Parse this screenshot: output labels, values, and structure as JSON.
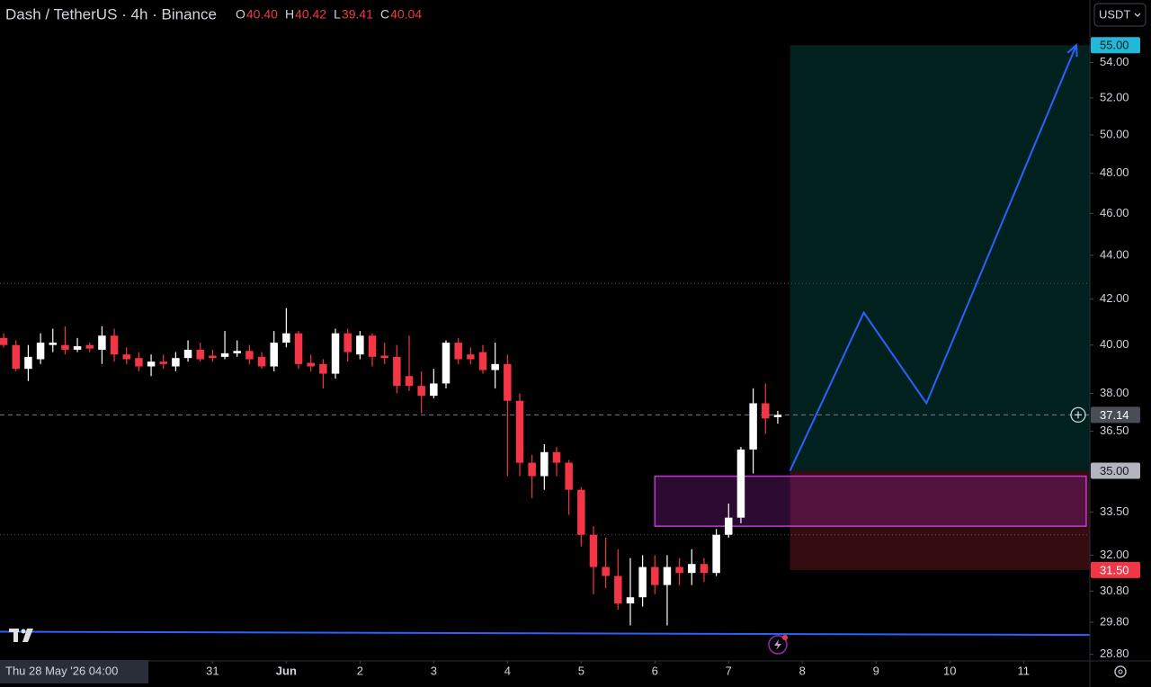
{
  "chart_data": {
    "type": "candlestick",
    "title": "Dash / TetherUS · 4h · Binance",
    "ohlc_legend": [
      {
        "key": "O",
        "text": "40.40"
      },
      {
        "key": "H",
        "text": "40.42"
      },
      {
        "key": "L",
        "text": "39.41"
      },
      {
        "key": "C",
        "text": "40.04"
      }
    ],
    "currency_button": "USDT",
    "crosshair_time": "Thu 28 May '26 04:00",
    "log_scale": true,
    "grid": false,
    "up_color": "#ffffff",
    "down_color": "#f23645",
    "x": [
      0,
      1,
      2,
      3,
      4,
      5,
      6,
      7,
      8,
      9,
      10,
      11,
      12,
      13,
      14,
      15,
      16,
      17,
      18,
      19,
      20,
      21,
      22,
      23,
      24,
      25,
      26,
      27,
      28,
      29,
      30,
      31,
      32,
      33,
      34,
      35,
      36,
      37,
      38,
      39,
      40,
      41,
      42,
      43,
      44,
      45,
      46,
      47,
      48,
      49,
      50,
      51,
      52,
      53,
      54,
      55,
      56,
      57,
      58,
      59,
      60,
      61,
      62,
      63
    ],
    "open": [
      40.3,
      40.0,
      39.0,
      39.4,
      40.0,
      40.0,
      39.8,
      40.0,
      39.8,
      40.4,
      39.6,
      39.45,
      39.1,
      39.3,
      39.1,
      39.45,
      39.8,
      39.55,
      39.5,
      39.65,
      39.75,
      39.5,
      39.1,
      40.1,
      40.5,
      39.25,
      39.2,
      38.8,
      40.5,
      39.6,
      40.4,
      39.55,
      39.5,
      38.7,
      38.3,
      37.9,
      38.4,
      40.1,
      39.6,
      39.7,
      38.95,
      39.2,
      37.7,
      35.3,
      34.8,
      35.7,
      35.3,
      34.3,
      32.7,
      31.6,
      31.3,
      30.4,
      30.6,
      31.6,
      31.0,
      31.6,
      31.4,
      31.7,
      31.4,
      32.7,
      33.3,
      35.8,
      37.6,
      37.05
    ],
    "high": [
      40.5,
      40.2,
      40.0,
      40.5,
      40.7,
      40.8,
      40.3,
      40.1,
      40.8,
      40.7,
      39.9,
      39.7,
      39.6,
      39.6,
      39.7,
      40.2,
      40.1,
      39.8,
      40.6,
      40.2,
      40.0,
      39.7,
      40.6,
      41.6,
      40.6,
      39.6,
      39.4,
      40.7,
      40.7,
      40.6,
      40.5,
      40.1,
      40.0,
      40.4,
      38.9,
      39.0,
      40.2,
      40.3,
      39.9,
      40.0,
      40.1,
      39.6,
      38.0,
      35.6,
      36.0,
      35.9,
      35.4,
      34.4,
      33.0,
      32.6,
      32.2,
      31.9,
      32.0,
      32.0,
      32.0,
      31.9,
      32.2,
      31.9,
      32.9,
      33.8,
      35.9,
      38.2,
      38.4,
      37.3
    ],
    "low": [
      39.9,
      38.9,
      38.5,
      39.2,
      39.7,
      39.6,
      39.7,
      39.7,
      39.2,
      39.3,
      39.2,
      38.9,
      38.7,
      39.0,
      38.9,
      39.3,
      39.3,
      39.3,
      39.4,
      39.5,
      39.2,
      39.0,
      38.9,
      39.9,
      39.0,
      38.9,
      38.2,
      38.6,
      39.3,
      39.4,
      39.1,
      39.2,
      38.0,
      38.1,
      37.2,
      37.8,
      38.2,
      39.2,
      39.2,
      38.8,
      38.2,
      34.8,
      34.8,
      34.0,
      34.3,
      34.8,
      33.4,
      32.3,
      30.7,
      30.9,
      30.2,
      29.7,
      30.3,
      30.7,
      29.7,
      31.0,
      31.0,
      31.1,
      31.3,
      32.6,
      33.1,
      34.9,
      36.4,
      36.8
    ],
    "close": [
      40.0,
      39.0,
      39.5,
      40.1,
      40.1,
      39.8,
      39.95,
      39.85,
      40.4,
      39.6,
      39.4,
      39.1,
      39.3,
      39.2,
      39.45,
      39.8,
      39.4,
      39.45,
      39.65,
      39.75,
      39.4,
      39.1,
      40.1,
      40.5,
      39.2,
      39.1,
      38.8,
      40.5,
      39.7,
      40.4,
      39.5,
      39.45,
      38.3,
      38.3,
      37.9,
      38.4,
      40.1,
      39.4,
      39.4,
      38.95,
      39.2,
      37.7,
      35.3,
      34.8,
      35.7,
      35.3,
      34.3,
      32.7,
      31.6,
      31.3,
      30.4,
      30.6,
      31.6,
      31.0,
      31.6,
      31.4,
      31.7,
      31.4,
      32.7,
      33.3,
      35.8,
      37.6,
      37.0,
      37.14
    ],
    "xlim": [
      -0.3,
      88.4
    ],
    "xticks": [
      {
        "value": 17,
        "label": "31"
      },
      {
        "value": 23,
        "label": "Jun"
      },
      {
        "value": 29,
        "label": "2"
      },
      {
        "value": 35,
        "label": "3"
      },
      {
        "value": 41,
        "label": "4"
      },
      {
        "value": 47,
        "label": "5"
      },
      {
        "value": 53,
        "label": "6"
      },
      {
        "value": 59,
        "label": "7"
      },
      {
        "value": 65,
        "label": "8"
      },
      {
        "value": 71,
        "label": "9"
      },
      {
        "value": 77,
        "label": "10"
      },
      {
        "value": 83,
        "label": "11"
      }
    ],
    "ylim": [
      28.6,
      57.7
    ],
    "yticks": [
      {
        "value": 54,
        "label": "54.00"
      },
      {
        "value": 52,
        "label": "52.00"
      },
      {
        "value": 50,
        "label": "50.00"
      },
      {
        "value": 48,
        "label": "48.00"
      },
      {
        "value": 46,
        "label": "46.00"
      },
      {
        "value": 44,
        "label": "44.00"
      },
      {
        "value": 42,
        "label": "42.00"
      },
      {
        "value": 40,
        "label": "40.00"
      },
      {
        "value": 38,
        "label": "38.00"
      },
      {
        "value": 36.5,
        "label": "36.50"
      },
      {
        "value": 33.5,
        "label": "33.50"
      },
      {
        "value": 32,
        "label": "32.00"
      },
      {
        "value": 30.8,
        "label": "30.80"
      },
      {
        "value": 29.8,
        "label": "29.80"
      },
      {
        "value": 28.8,
        "label": "28.80"
      }
    ],
    "position": {
      "x_start": 64,
      "target": {
        "value": 55,
        "label": "55.00"
      },
      "entry": {
        "value": 35,
        "label": "35.00"
      },
      "stop": {
        "value": 31.5,
        "label": "31.50"
      }
    },
    "last_price": {
      "value": 37.14,
      "label": "37.14"
    },
    "zone": {
      "x": [
        53,
        88.1
      ],
      "y": [
        34.8,
        33.0
      ]
    },
    "projection": {
      "x": [
        64,
        70,
        75.1,
        87.3
      ],
      "y": [
        35,
        41.4,
        37.6,
        55
      ]
    },
    "trendline": {
      "x": [
        -0.3,
        88.4
      ],
      "y": [
        29.5,
        29.4
      ]
    },
    "dotted_levels": [
      42.7,
      32.7
    ]
  }
}
